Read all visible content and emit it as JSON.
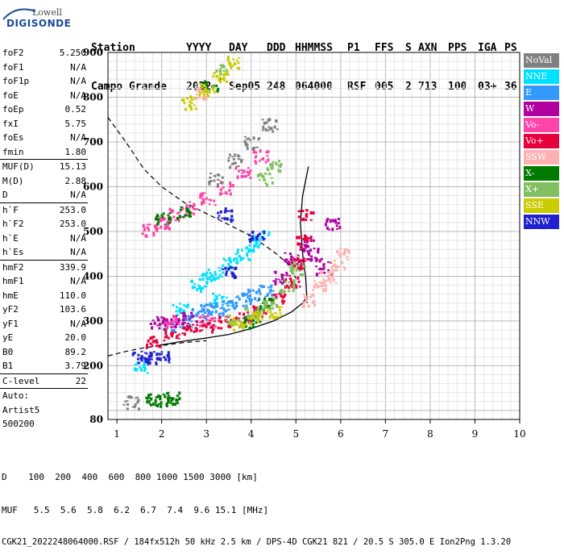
{
  "logo": {
    "top": "Lowell",
    "bottom": "DIGISONDE"
  },
  "header": {
    "line1": [
      "Station",
      "YYYY",
      "DAY",
      "DDD",
      "HHMMSS",
      "P1",
      "FFS",
      "S",
      "AXN",
      "PPS",
      "IGA",
      "PS"
    ],
    "line2": [
      "Campo Grande",
      "2022",
      "Sep05",
      "248",
      "064000",
      "RSF",
      "005",
      "2",
      "713",
      "100",
      "03+",
      "36"
    ]
  },
  "params": {
    "group1": [
      {
        "label": "foF2",
        "value": "5.250"
      },
      {
        "label": "foF1",
        "value": "N/A"
      },
      {
        "label": "foF1p",
        "value": "N/A"
      },
      {
        "label": "foE",
        "value": "N/A"
      },
      {
        "label": "foEp",
        "value": "0.52"
      },
      {
        "label": "fxI",
        "value": "5.75"
      },
      {
        "label": "foEs",
        "value": "N/A"
      },
      {
        "label": "fmin",
        "value": "1.80"
      }
    ],
    "group2": [
      {
        "label": "MUF(D)",
        "value": "15.13"
      },
      {
        "label": "M(D)",
        "value": "2.88"
      },
      {
        "label": "D",
        "value": "N/A"
      }
    ],
    "group3": [
      {
        "label": "h`F",
        "value": "253.0"
      },
      {
        "label": "h`F2",
        "value": "253.0"
      },
      {
        "label": "h`E",
        "value": "N/A"
      },
      {
        "label": "h`Es",
        "value": "N/A"
      }
    ],
    "group4": [
      {
        "label": "hmF2",
        "value": "339.9"
      },
      {
        "label": "hmF1",
        "value": "N/A"
      },
      {
        "label": "hmE",
        "value": "110.0"
      },
      {
        "label": "yF2",
        "value": "103.6"
      },
      {
        "label": "yF1",
        "value": "N/A"
      },
      {
        "label": "yE",
        "value": "20.0"
      },
      {
        "label": "B0",
        "value": "89.2"
      },
      {
        "label": "B1",
        "value": "3.79"
      }
    ],
    "group5": [
      {
        "label": "C-level",
        "value": "22"
      }
    ],
    "footer": [
      "Auto:",
      "Artist5",
      "500200"
    ]
  },
  "legend": [
    {
      "label": "NoVal",
      "color": "#808080"
    },
    {
      "label": "NNE",
      "color": "#00e0ff"
    },
    {
      "label": "E",
      "color": "#3399ff"
    },
    {
      "label": "W",
      "color": "#b000a0"
    },
    {
      "label": "Vo-",
      "color": "#ff44aa"
    },
    {
      "label": "Vo+",
      "color": "#e8003c"
    },
    {
      "label": "SSW",
      "color": "#ffb0b0"
    },
    {
      "label": "X-",
      "color": "#007a00"
    },
    {
      "label": "X+",
      "color": "#80c060"
    },
    {
      "label": "SSE",
      "color": "#c8cc00"
    },
    {
      "label": "NNW",
      "color": "#2020d0"
    }
  ],
  "bottom": {
    "d_line": "D    100  200  400  600  800 1000 1500 3000 [km]",
    "muf_line": "MUF   5.5  5.6  5.8  6.2  6.7  7.4  9.6 15.1 [MHz]",
    "file_line": "CGK21_2022248064000.RSF / 184fx512h 50 kHz 2.5 km / DPS-4D CGK21 821 / 20.5 S 305.0 E Ion2Png 1.3.20"
  },
  "chart_data": {
    "type": "scatter",
    "title": "",
    "xlabel": "",
    "ylabel": "",
    "xlim": [
      0.8,
      10.0
    ],
    "ylim": [
      80,
      900
    ],
    "x_ticks": [
      1,
      2,
      3,
      4,
      5,
      6,
      7,
      8,
      9,
      10
    ],
    "y_ticks": [
      80,
      200,
      300,
      400,
      500,
      600,
      700,
      800,
      900
    ],
    "grid": true,
    "legend_position": "right",
    "profile_curve": [
      [
        5.25,
        340
      ],
      [
        5.22,
        395
      ],
      [
        5.15,
        450
      ],
      [
        5.1,
        520
      ],
      [
        5.15,
        580
      ],
      [
        5.28,
        645
      ]
    ],
    "true_height_curve": [
      [
        1.9,
        245
      ],
      [
        2.5,
        255
      ],
      [
        3.0,
        262
      ],
      [
        3.5,
        270
      ],
      [
        4.0,
        283
      ],
      [
        4.5,
        300
      ],
      [
        4.9,
        320
      ],
      [
        5.15,
        340
      ],
      [
        5.25,
        355
      ]
    ],
    "dashed_curves": [
      [
        [
          0.8,
          222
        ],
        [
          1.2,
          232
        ],
        [
          1.6,
          240
        ],
        [
          2.0,
          245
        ],
        [
          2.5,
          252
        ],
        [
          3.0,
          256
        ]
      ],
      [
        [
          0.8,
          755
        ],
        [
          1.2,
          700
        ],
        [
          1.6,
          640
        ],
        [
          2.0,
          600
        ],
        [
          2.5,
          565
        ],
        [
          3.0,
          540
        ],
        [
          3.5,
          515
        ],
        [
          4.0,
          490
        ],
        [
          4.5,
          455
        ],
        [
          4.8,
          430
        ],
        [
          5.0,
          395
        ]
      ]
    ],
    "series": [
      {
        "name": "NNE",
        "points": [
          [
            2.8,
            380
          ],
          [
            3.0,
            400
          ],
          [
            3.2,
            410
          ],
          [
            3.5,
            430
          ],
          [
            3.8,
            450
          ],
          [
            4.0,
            470
          ],
          [
            4.2,
            490
          ],
          [
            2.4,
            330
          ],
          [
            3.3,
            350
          ],
          [
            1.5,
            200
          ]
        ]
      },
      {
        "name": "E",
        "points": [
          [
            2.5,
            300
          ],
          [
            2.8,
            320
          ],
          [
            3.0,
            330
          ],
          [
            3.2,
            330
          ],
          [
            3.5,
            335
          ],
          [
            3.8,
            350
          ],
          [
            4.0,
            360
          ],
          [
            4.3,
            370
          ],
          [
            2.2,
            290
          ]
        ]
      },
      {
        "name": "W",
        "points": [
          [
            2.2,
            300
          ],
          [
            2.6,
            310
          ],
          [
            4.6,
            400
          ],
          [
            4.9,
            440
          ],
          [
            5.2,
            470
          ],
          [
            5.4,
            450
          ],
          [
            5.6,
            420
          ],
          [
            5.8,
            520
          ],
          [
            1.9,
            300
          ]
        ]
      },
      {
        "name": "Vo-",
        "points": [
          [
            1.7,
            505
          ],
          [
            2.0,
            520
          ],
          [
            2.3,
            540
          ],
          [
            2.6,
            555
          ],
          [
            3.0,
            575
          ],
          [
            3.4,
            600
          ],
          [
            3.8,
            630
          ],
          [
            4.2,
            670
          ],
          [
            2.2,
            300
          ],
          [
            3.0,
            300
          ]
        ]
      },
      {
        "name": "Vo+",
        "points": [
          [
            1.8,
            255
          ],
          [
            2.2,
            270
          ],
          [
            2.6,
            280
          ],
          [
            3.0,
            290
          ],
          [
            3.4,
            300
          ],
          [
            3.8,
            310
          ],
          [
            4.2,
            325
          ],
          [
            4.6,
            350
          ],
          [
            4.9,
            390
          ],
          [
            5.05,
            430
          ],
          [
            5.15,
            480
          ],
          [
            5.2,
            540
          ]
        ]
      },
      {
        "name": "SSW",
        "points": [
          [
            5.5,
            380
          ],
          [
            5.7,
            400
          ],
          [
            5.9,
            420
          ],
          [
            6.0,
            450
          ],
          [
            5.3,
            350
          ],
          [
            2.8,
            810
          ]
        ]
      },
      {
        "name": "X-",
        "points": [
          [
            1.8,
            125
          ],
          [
            2.0,
            128
          ],
          [
            2.2,
            130
          ],
          [
            2.0,
            530
          ],
          [
            2.5,
            545
          ],
          [
            4.0,
            300
          ],
          [
            4.3,
            340
          ],
          [
            3.1,
            830
          ]
        ]
      },
      {
        "name": "X+",
        "points": [
          [
            3.6,
            300
          ],
          [
            4.0,
            320
          ],
          [
            4.4,
            340
          ],
          [
            4.8,
            380
          ],
          [
            5.0,
            420
          ],
          [
            4.5,
            650
          ],
          [
            4.3,
            620
          ],
          [
            3.3,
            860
          ]
        ]
      },
      {
        "name": "SSE",
        "points": [
          [
            3.7,
            295
          ],
          [
            4.1,
            310
          ],
          [
            4.5,
            320
          ],
          [
            2.6,
            790
          ],
          [
            3.0,
            820
          ],
          [
            3.3,
            850
          ],
          [
            3.6,
            880
          ]
        ]
      },
      {
        "name": "NNW",
        "points": [
          [
            1.5,
            220
          ],
          [
            1.8,
            220
          ],
          [
            2.0,
            220
          ],
          [
            3.4,
            540
          ],
          [
            4.1,
            490
          ],
          [
            3.5,
            410
          ]
        ]
      },
      {
        "name": "NoVal",
        "points": [
          [
            3.2,
            620
          ],
          [
            3.6,
            660
          ],
          [
            4.0,
            700
          ],
          [
            4.4,
            740
          ],
          [
            1.3,
            120
          ]
        ]
      }
    ]
  }
}
